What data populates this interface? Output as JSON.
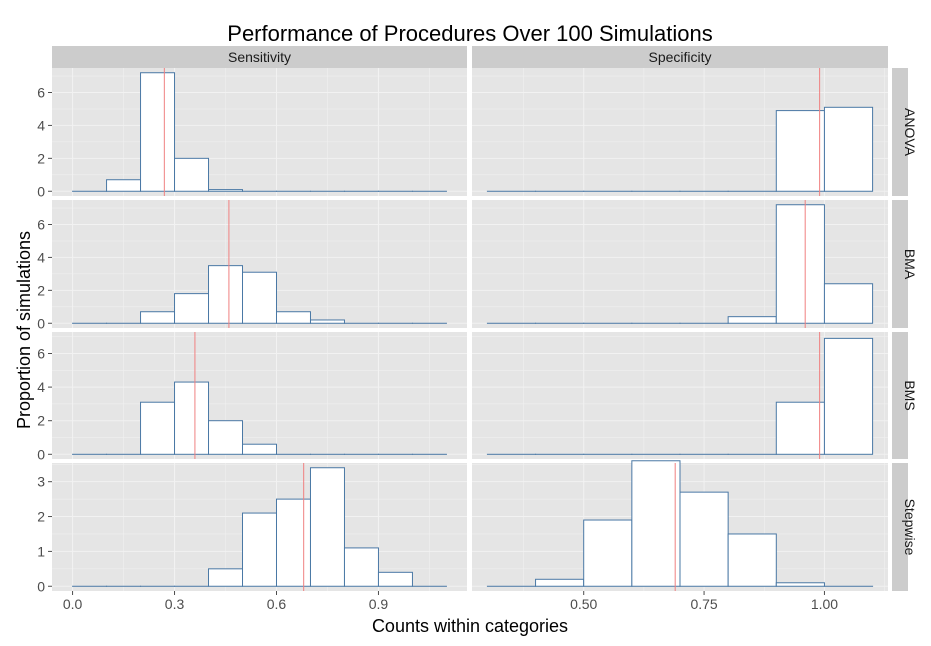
{
  "chart_data": {
    "type": "bar",
    "title": "Performance of Procedures Over 100 Simulations",
    "xlabel": "Counts within categories",
    "ylabel": "Proportion of simulations",
    "columns": [
      "Sensitivity",
      "Specificity"
    ],
    "rows": [
      "ANOVA",
      "BMA",
      "BMS",
      "Stepwise"
    ],
    "xlim": {
      "Sensitivity": [
        0.0,
        1.1
      ],
      "Specificity": [
        0.3,
        1.1
      ]
    },
    "ylim": {
      "ANOVA": [
        0,
        7.2
      ],
      "BMA": [
        0,
        7.2
      ],
      "BMS": [
        0,
        7.0
      ],
      "Stepwise": [
        0,
        3.4
      ]
    },
    "xticks": {
      "Sensitivity": [
        {
          "v": 0.0,
          "label": "0.0"
        },
        {
          "v": 0.3,
          "label": "0.3"
        },
        {
          "v": 0.6,
          "label": "0.6"
        },
        {
          "v": 0.9,
          "label": "0.9"
        }
      ],
      "Specificity": [
        {
          "v": 0.5,
          "label": "0.50"
        },
        {
          "v": 0.75,
          "label": "0.75"
        },
        {
          "v": 1.0,
          "label": "1.00"
        }
      ]
    },
    "yticks": {
      "ANOVA": [
        0,
        2,
        4,
        6
      ],
      "BMA": [
        0,
        2,
        4,
        6
      ],
      "BMS": [
        0,
        2,
        4,
        6
      ],
      "Stepwise": [
        0,
        1,
        2,
        3
      ]
    },
    "panels": [
      {
        "row": "ANOVA",
        "col": "Sensitivity",
        "bin_width": 0.1,
        "range": [
          0.0,
          1.1
        ],
        "bins": [
          [
            0.1,
            0.7
          ],
          [
            0.2,
            7.2
          ],
          [
            0.3,
            2.0
          ],
          [
            0.4,
            0.1
          ]
        ],
        "vline": 0.27
      },
      {
        "row": "ANOVA",
        "col": "Specificity",
        "bin_width": 0.1,
        "range": [
          0.3,
          1.1
        ],
        "bins": [
          [
            0.9,
            4.9
          ],
          [
            1.0,
            5.1
          ]
        ],
        "vline": 0.99
      },
      {
        "row": "BMA",
        "col": "Sensitivity",
        "bin_width": 0.1,
        "range": [
          0.0,
          1.1
        ],
        "bins": [
          [
            0.2,
            0.7
          ],
          [
            0.3,
            1.8
          ],
          [
            0.4,
            3.5
          ],
          [
            0.5,
            3.1
          ],
          [
            0.6,
            0.7
          ],
          [
            0.7,
            0.2
          ]
        ],
        "vline": 0.46
      },
      {
        "row": "BMA",
        "col": "Specificity",
        "bin_width": 0.1,
        "range": [
          0.3,
          1.1
        ],
        "bins": [
          [
            0.8,
            0.4
          ],
          [
            0.9,
            7.2
          ],
          [
            1.0,
            2.4
          ]
        ],
        "vline": 0.96
      },
      {
        "row": "BMS",
        "col": "Sensitivity",
        "bin_width": 0.1,
        "range": [
          0.0,
          1.1
        ],
        "bins": [
          [
            0.2,
            3.1
          ],
          [
            0.3,
            4.3
          ],
          [
            0.4,
            2.0
          ],
          [
            0.5,
            0.6
          ]
        ],
        "vline": 0.36
      },
      {
        "row": "BMS",
        "col": "Specificity",
        "bin_width": 0.1,
        "range": [
          0.3,
          1.1
        ],
        "bins": [
          [
            0.9,
            3.1
          ],
          [
            1.0,
            6.9
          ]
        ],
        "vline": 0.99
      },
      {
        "row": "Stepwise",
        "col": "Sensitivity",
        "bin_width": 0.1,
        "range": [
          0.0,
          1.1
        ],
        "bins": [
          [
            0.4,
            0.5
          ],
          [
            0.5,
            2.1
          ],
          [
            0.6,
            2.5
          ],
          [
            0.7,
            3.4
          ],
          [
            0.8,
            1.1
          ],
          [
            0.9,
            0.4
          ]
        ],
        "vline": 0.68
      },
      {
        "row": "Stepwise",
        "col": "Specificity",
        "bin_width": 0.1,
        "range": [
          0.3,
          1.1
        ],
        "bins": [
          [
            0.4,
            0.2
          ],
          [
            0.5,
            1.9
          ],
          [
            0.6,
            3.6
          ],
          [
            0.7,
            2.7
          ],
          [
            0.8,
            1.5
          ],
          [
            0.9,
            0.1
          ]
        ],
        "vline": 0.69
      }
    ],
    "grid": true,
    "colors": {
      "panel_bg": "#e5e5e5",
      "grid": "#f2f2f2",
      "strip_bg": "#cccccc",
      "bar_fill": "#ffffff",
      "bar_stroke": "#4a78a5",
      "vline": "#f08080"
    }
  }
}
